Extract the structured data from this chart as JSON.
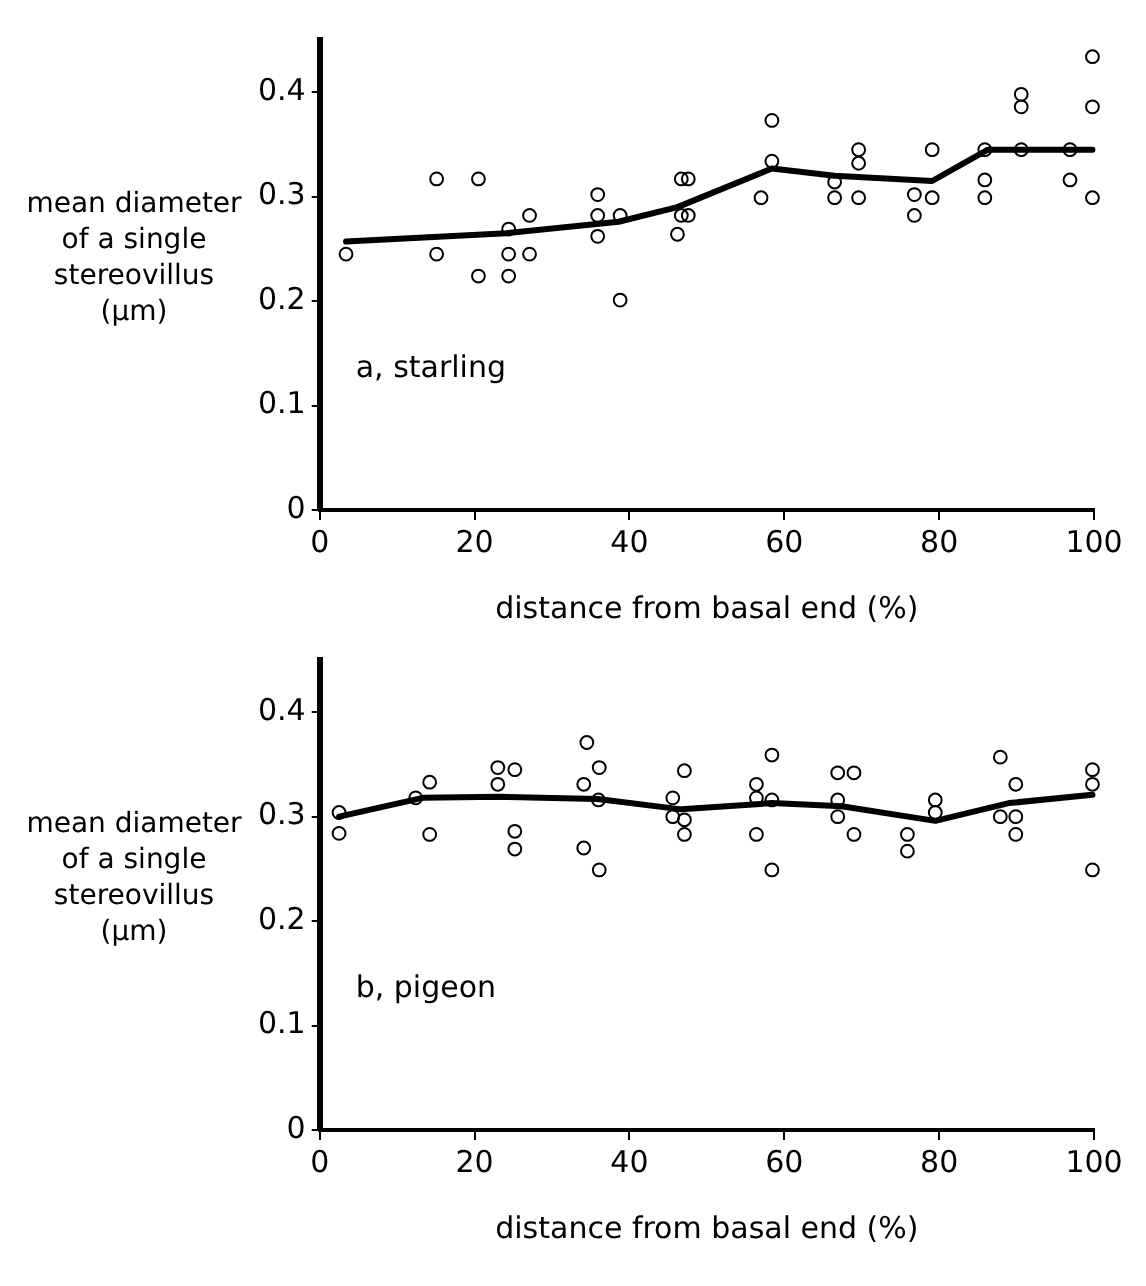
{
  "chart_data": [
    {
      "type": "scatter",
      "xlabel": "distance from basal end (%)",
      "ylabel": "mean diameter of a single stereovillus (µm)",
      "annotations": [
        "a, starling"
      ],
      "xlim": [
        0,
        100
      ],
      "ylim": [
        0,
        0.45
      ],
      "xticks": [
        0,
        20,
        40,
        60,
        80,
        100
      ],
      "yticks": [
        0,
        0.1,
        0.2,
        0.3,
        0.4
      ],
      "grid": false,
      "legend": false,
      "series": [
        {
          "marker": "circle",
          "color": "#000000",
          "x": [
            3.4,
            15.1,
            15.1,
            20.5,
            20.5,
            24.4,
            24.4,
            24.4,
            27.1,
            27.1,
            35.9,
            35.9,
            35.9,
            38.8,
            38.8,
            46.7,
            47.6,
            46.7,
            47.6,
            46.2,
            58.4,
            58.4,
            57,
            66.5,
            66.5,
            69.6,
            69.6,
            69.6,
            76.8,
            76.8,
            79.1,
            79.1,
            85.9,
            85.9,
            85.9,
            90.6,
            90.6,
            90.6,
            96.9,
            96.9,
            99.8,
            99.8,
            99.8
          ],
          "values": [
            0.245,
            0.317,
            0.245,
            0.317,
            0.224,
            0.269,
            0.245,
            0.224,
            0.282,
            0.245,
            0.302,
            0.282,
            0.262,
            0.282,
            0.201,
            0.317,
            0.317,
            0.282,
            0.282,
            0.264,
            0.373,
            0.334,
            0.299,
            0.314,
            0.299,
            0.345,
            0.332,
            0.299,
            0.302,
            0.282,
            0.299,
            0.345,
            0.345,
            0.316,
            0.299,
            0.398,
            0.386,
            0.345,
            0.345,
            0.316,
            0.434,
            0.386,
            0.299
          ]
        },
        {
          "type": "line",
          "marker": "none",
          "line_style": "solid",
          "color": "#000000",
          "x": [
            3.4,
            24.1,
            38.6,
            46.2,
            58.4,
            66.5,
            79.1,
            86.3,
            99.8
          ],
          "values": [
            0.257,
            0.265,
            0.276,
            0.29,
            0.327,
            0.32,
            0.315,
            0.345,
            0.345
          ]
        }
      ]
    },
    {
      "type": "scatter",
      "xlabel": "distance from basal end (%)",
      "ylabel": "mean diameter of a single stereovillus (µm)",
      "annotations": [
        "b, pigeon"
      ],
      "xlim": [
        0,
        100
      ],
      "ylim": [
        0,
        0.45
      ],
      "xticks": [
        0,
        20,
        40,
        60,
        80,
        100
      ],
      "yticks": [
        0,
        0.1,
        0.2,
        0.3,
        0.4
      ],
      "grid": false,
      "legend": false,
      "series": [
        {
          "marker": "circle",
          "color": "#000000",
          "x": [
            2.5,
            2.5,
            12.4,
            14.2,
            14.2,
            23,
            23,
            25.2,
            25.2,
            25.2,
            34.5,
            34.1,
            36.1,
            36,
            34.1,
            36.1,
            45.6,
            45.6,
            47.1,
            47.1,
            47.1,
            56.4,
            56.4,
            56.4,
            58.4,
            58.4,
            58.4,
            66.9,
            69,
            66.9,
            66.9,
            69,
            75.9,
            75.9,
            79.5,
            79.5,
            87.9,
            89.9,
            87.9,
            89.9,
            89.9,
            99.8,
            99.8,
            99.8
          ],
          "values": [
            0.304,
            0.284,
            0.318,
            0.333,
            0.283,
            0.347,
            0.331,
            0.345,
            0.286,
            0.269,
            0.371,
            0.331,
            0.347,
            0.316,
            0.27,
            0.249,
            0.318,
            0.3,
            0.344,
            0.297,
            0.283,
            0.331,
            0.318,
            0.283,
            0.359,
            0.316,
            0.249,
            0.342,
            0.342,
            0.316,
            0.3,
            0.283,
            0.283,
            0.267,
            0.316,
            0.304,
            0.357,
            0.331,
            0.3,
            0.3,
            0.283,
            0.345,
            0.331,
            0.249
          ]
        },
        {
          "type": "line",
          "marker": "none",
          "line_style": "solid",
          "color": "#000000",
          "x": [
            2.5,
            13.3,
            23.2,
            35.9,
            46.7,
            58.4,
            67.4,
            79.5,
            89,
            99.8
          ],
          "values": [
            0.3,
            0.318,
            0.319,
            0.317,
            0.307,
            0.313,
            0.31,
            0.296,
            0.313,
            0.321
          ]
        }
      ]
    }
  ]
}
